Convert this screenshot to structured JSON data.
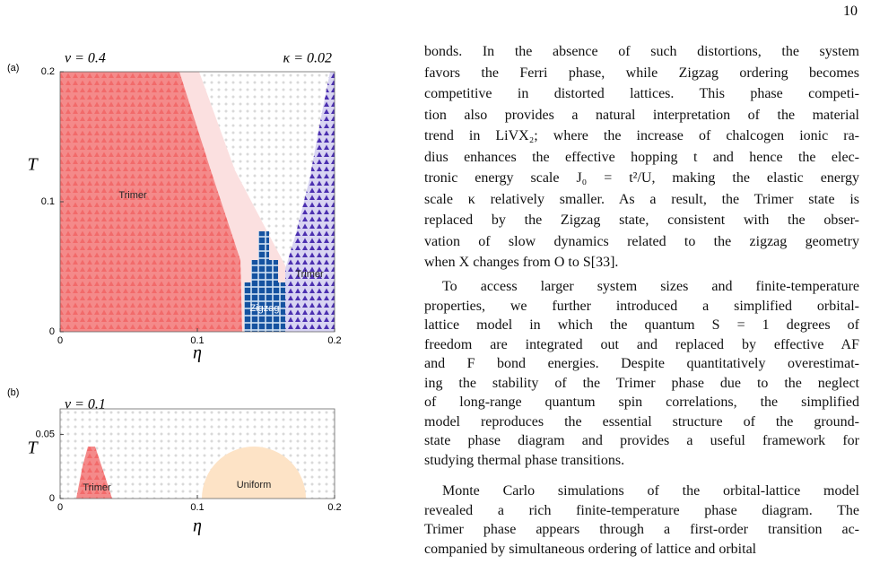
{
  "page_number": "10",
  "figure": {
    "panels": [
      {
        "label": "(a)",
        "left_annotation": "ν = 0.4",
        "right_annotation": "κ = 0.02",
        "y_label": "T",
        "x_label": "η",
        "xlim": [
          0,
          0.2
        ],
        "ylim": [
          0,
          0.2
        ],
        "xticks": [
          0,
          0.1,
          0.2
        ],
        "yticks": [
          0,
          0.1,
          0.2
        ],
        "regions": [
          "Trimer",
          "Zigzag",
          "Trimer"
        ]
      },
      {
        "label": "(b)",
        "left_annotation": "ν = 0.1",
        "y_label": "T",
        "x_label": "η",
        "xlim": [
          0,
          0.2
        ],
        "ylim": [
          0,
          0.07
        ],
        "xticks": [
          0,
          0.1,
          0.2
        ],
        "yticks": [
          0,
          0.05
        ],
        "regions": [
          "Trimer",
          "Uniform"
        ]
      }
    ]
  },
  "text": {
    "paragraphs": [
      [
        "bonds. In the absence of such distortions, the system",
        "favors the Ferri phase, while Zigzag ordering becomes",
        "competitive in distorted lattices. This phase competi-",
        "tion also provides a natural interpretation of the material",
        "trend in LiVX₂; where the increase of chalcogen ionic ra-",
        "dius enhances the effective hopping t and hence the elec-",
        "tronic energy scale J₀ = t²/U, making the elastic energy",
        "scale κ relatively smaller. As a result, the Trimer state is",
        "replaced by the Zigzag state, consistent with the obser-",
        "vation of slow dynamics related to the zigzag geometry",
        "when X changes from O to S[33]."
      ],
      [
        "To access larger system sizes and finite-temperature",
        "properties, we further introduced a simplified orbital-",
        "lattice model in which the quantum S = 1 degrees of",
        "freedom are integrated out and replaced by effective AF",
        "and F bond energies. Despite quantitatively overestimat-",
        "ing the stability of the Trimer phase due to the neglect",
        "of long-range quantum spin correlations, the simplified",
        "model reproduces the essential structure of the ground-",
        "state phase diagram and provides a useful framework for",
        "studying thermal phase transitions."
      ],
      [
        "Monte Carlo simulations of the orbital-lattice model",
        "revealed a rich finite-temperature phase diagram. The",
        "Trimer phase appears through a first-order transition ac-",
        "companied by simultaneous ordering of lattice and orbital"
      ]
    ]
  }
}
